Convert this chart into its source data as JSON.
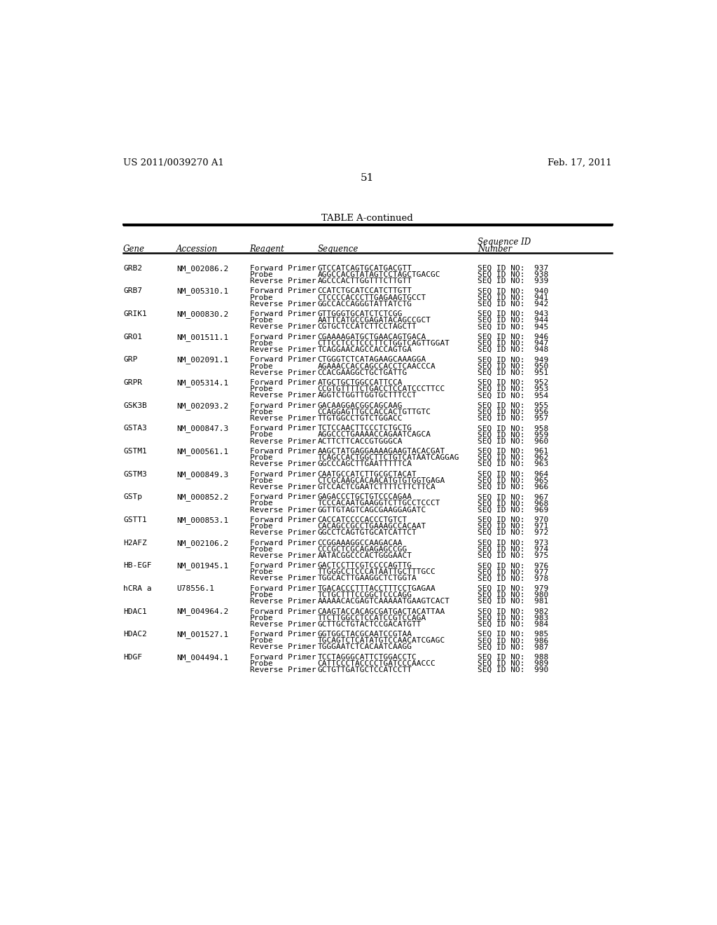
{
  "header_left": "US 2011/0039270 A1",
  "header_right": "Feb. 17, 2011",
  "page_number": "51",
  "table_title": "TABLE A-continued",
  "rows": [
    [
      "GRB2",
      "NM_002086.2",
      "Forward Primer",
      "GTCCATCAGTGCATGACGTT",
      "SEQ ID NO:  937"
    ],
    [
      "",
      "",
      "Probe",
      "AGGCCACGTATAGTCCTAGCTGACGC",
      "SEQ ID NO:  938"
    ],
    [
      "",
      "",
      "Reverse Primer",
      "AGCCCACTTGGTTTCTTGTT",
      "SEQ ID NO:  939"
    ],
    [
      "GRB7",
      "NM_005310.1",
      "Forward Primer",
      "CCATCTGCATCCATCTTGTT",
      "SEQ ID NO:  940"
    ],
    [
      "",
      "",
      "Probe",
      "CTCCCCACCCTTGAGAAGTGCCT",
      "SEQ ID NO:  941"
    ],
    [
      "",
      "",
      "Reverse Primer",
      "GGCCACCAGGGTATTATCTG",
      "SEQ ID NO:  942"
    ],
    [
      "GRIK1",
      "NM_000830.2",
      "Forward Primer",
      "GTTGGGTGCATCTCTCGG",
      "SEQ ID NO:  943"
    ],
    [
      "",
      "",
      "Probe",
      "AATTCATGCCGAGATACAGCCGCT",
      "SEQ ID NO:  944"
    ],
    [
      "",
      "",
      "Reverse Primer",
      "CGTGCTCCATCTTCCTAGCTT",
      "SEQ ID NO:  945"
    ],
    [
      "GRO1",
      "NM_001511.1",
      "Forward Primer",
      "CGAAAAGATGCTGAACAGTGACA",
      "SEQ ID NO:  946"
    ],
    [
      "",
      "",
      "Probe",
      "CTTCCTCCTCCCTTCTGGTCAGTTGGAT",
      "SEQ ID NO:  947"
    ],
    [
      "",
      "",
      "Reverse Primer",
      "TCAGGAACAGCCACCAGTGA",
      "SEQ ID NO:  948"
    ],
    [
      "GRP",
      "NM_002091.1",
      "Forward Primer",
      "CTGGGTCTCATAGAAGCAAAGGA",
      "SEQ ID NO:  949"
    ],
    [
      "",
      "",
      "Probe",
      "AGAAACCACCAGCCACCTCAACCCA",
      "SEQ ID NO:  950"
    ],
    [
      "",
      "",
      "Reverse Primer",
      "CCACGAAGGCTGCTGATTG",
      "SEQ ID NO:  951"
    ],
    [
      "GRPR",
      "NM_005314.1",
      "Forward Primer",
      "ATGCTGCTGGCCATTCCA",
      "SEQ ID NO:  952"
    ],
    [
      "",
      "",
      "Probe",
      "CCGTGTTTTCTGACCTCCATCCCTTCC",
      "SEQ ID NO:  953"
    ],
    [
      "",
      "",
      "Reverse Primer",
      "AGGTCTGGTTGGTGCTTTCCT",
      "SEQ ID NO:  954"
    ],
    [
      "GSK3B",
      "NM_002093.2",
      "Forward Primer",
      "GACAAGGACGGCAGCAAG",
      "SEQ ID NO:  955"
    ],
    [
      "",
      "",
      "Probe",
      "CCAGGAGTTGCCACCACTGTTGTC",
      "SEQ ID NO:  956"
    ],
    [
      "",
      "",
      "Reverse Primer",
      "TTGTGGCCTGTCTGGACC",
      "SEQ ID NO:  957"
    ],
    [
      "GSTA3",
      "NM_000847.3",
      "Forward Primer",
      "TCTCCAACTTCCCTCTGCTG",
      "SEQ ID NO:  958"
    ],
    [
      "",
      "",
      "Probe",
      "AGGCCCTGAAAACCAGAATCAGCA",
      "SEQ ID NO:  959"
    ],
    [
      "",
      "",
      "Reverse Primer",
      "ACTTCTTCACCGTGGGCA",
      "SEQ ID NO:  960"
    ],
    [
      "GSTM1",
      "NM_000561.1",
      "Forward Primer",
      "AAGCTATGAGGAAAAGAAGTACACGAT",
      "SEQ ID NO:  961"
    ],
    [
      "",
      "",
      "Probe",
      "TCAGCCACTGGCTTCTGTCATAATCAGGAG",
      "SEQ ID NO:  962"
    ],
    [
      "",
      "",
      "Reverse Primer",
      "GGCCCAGCTTGAATTTTTCA",
      "SEQ ID NO:  963"
    ],
    [
      "GSTM3",
      "NM_000849.3",
      "Forward Primer",
      "CAATGCCATCTTGCGCTACAT",
      "SEQ ID NO:  964"
    ],
    [
      "",
      "",
      "Probe",
      "CTCGCAAGCACAACATGTGTGGTGAGA",
      "SEQ ID NO:  965"
    ],
    [
      "",
      "",
      "Reverse Primer",
      "GTCCACTCGAATCTTTTCTTCTTCA",
      "SEQ ID NO:  966"
    ],
    [
      "GSTp",
      "NM_000852.2",
      "Forward Primer",
      "GAGACCCTGCTGTCCCAGAA",
      "SEQ ID NO:  967"
    ],
    [
      "",
      "",
      "Probe",
      "TCCCACAATGAAGGTCTTGCCTCCCT",
      "SEQ ID NO:  968"
    ],
    [
      "",
      "",
      "Reverse Primer",
      "GGTTGTAGTCAGCGAAGGAGATC",
      "SEQ ID NO:  969"
    ],
    [
      "GSTT1",
      "NM_000853.1",
      "Forward Primer",
      "CACCATCCCCACCCTGTCT",
      "SEQ ID NO:  970"
    ],
    [
      "",
      "",
      "Probe",
      "CACAGCCGCCTGAAAGCCACAAT",
      "SEQ ID NO:  971"
    ],
    [
      "",
      "",
      "Reverse Primer",
      "GGCCTCAGTGTGCATCATTCT",
      "SEQ ID NO:  972"
    ],
    [
      "H2AFZ",
      "NM_002106.2",
      "Forward Primer",
      "CCGGAAAGGCCAAGACAA",
      "SEQ ID NO:  973"
    ],
    [
      "",
      "",
      "Probe",
      "CCCGCTCGCAGAGAGCCGG",
      "SEQ ID NO:  974"
    ],
    [
      "",
      "",
      "Reverse Primer",
      "AATACGGCCCACTGGGAACT",
      "SEQ ID NO:  975"
    ],
    [
      "HB-EGF",
      "NM_001945.1",
      "Forward Primer",
      "GACTCCTTCGTCCCCAGTTG",
      "SEQ ID NO:  976"
    ],
    [
      "",
      "",
      "Probe",
      "TTGGGCCTCCCATAATTGCTTTGCC",
      "SEQ ID NO:  977"
    ],
    [
      "",
      "",
      "Reverse Primer",
      "TGGCACTTGAAGGCTCTGGTA",
      "SEQ ID NO:  978"
    ],
    [
      "hCRA a",
      "U78556.1",
      "Forward Primer",
      "TGACACCCTTTACCTTTCCTGAGAA",
      "SEQ ID NO:  979"
    ],
    [
      "",
      "",
      "Probe",
      "TCTGCTTTCCGGCTCCCAGG",
      "SEQ ID NO:  980"
    ],
    [
      "",
      "",
      "Reverse Primer",
      "AAAAACACGAGTCAAAAATGAAGTCACT",
      "SEQ ID NO:  981"
    ],
    [
      "HDAC1",
      "NM_004964.2",
      "Forward Primer",
      "CAAGTACCACAGCGATGACTACATTAA",
      "SEQ ID NO:  982"
    ],
    [
      "",
      "",
      "Probe",
      "TTCTTGGCCTCCATCCGTCCAGA",
      "SEQ ID NO:  983"
    ],
    [
      "",
      "",
      "Reverse Primer",
      "GCTTGCTGTACTCCGACATGTT",
      "SEQ ID NO:  984"
    ],
    [
      "HDAC2",
      "NM_001527.1",
      "Forward Primer",
      "GGTGGCTACGCAATCCGTAA",
      "SEQ ID NO:  985"
    ],
    [
      "",
      "",
      "Probe",
      "TGCAGTCTCATATGTCCAACATCGAGC",
      "SEQ ID NO:  986"
    ],
    [
      "",
      "",
      "Reverse Primer",
      "TGGGAATCTCACAATCAAGG",
      "SEQ ID NO:  987"
    ],
    [
      "HDGF",
      "NM_004494.1",
      "Forward Primer",
      "TCCTAGGGCATTCTGGACCTC",
      "SEQ ID NO:  988"
    ],
    [
      "",
      "",
      "Probe",
      "CATTCCCTACCCCTGATCCCAACCC",
      "SEQ ID NO:  989"
    ],
    [
      "",
      "",
      "Reverse Primer",
      "GCTGTTGATGCTCCATCCTT",
      "SEQ ID NO:  990"
    ]
  ],
  "bg_color": "#ffffff",
  "text_color": "#000000"
}
